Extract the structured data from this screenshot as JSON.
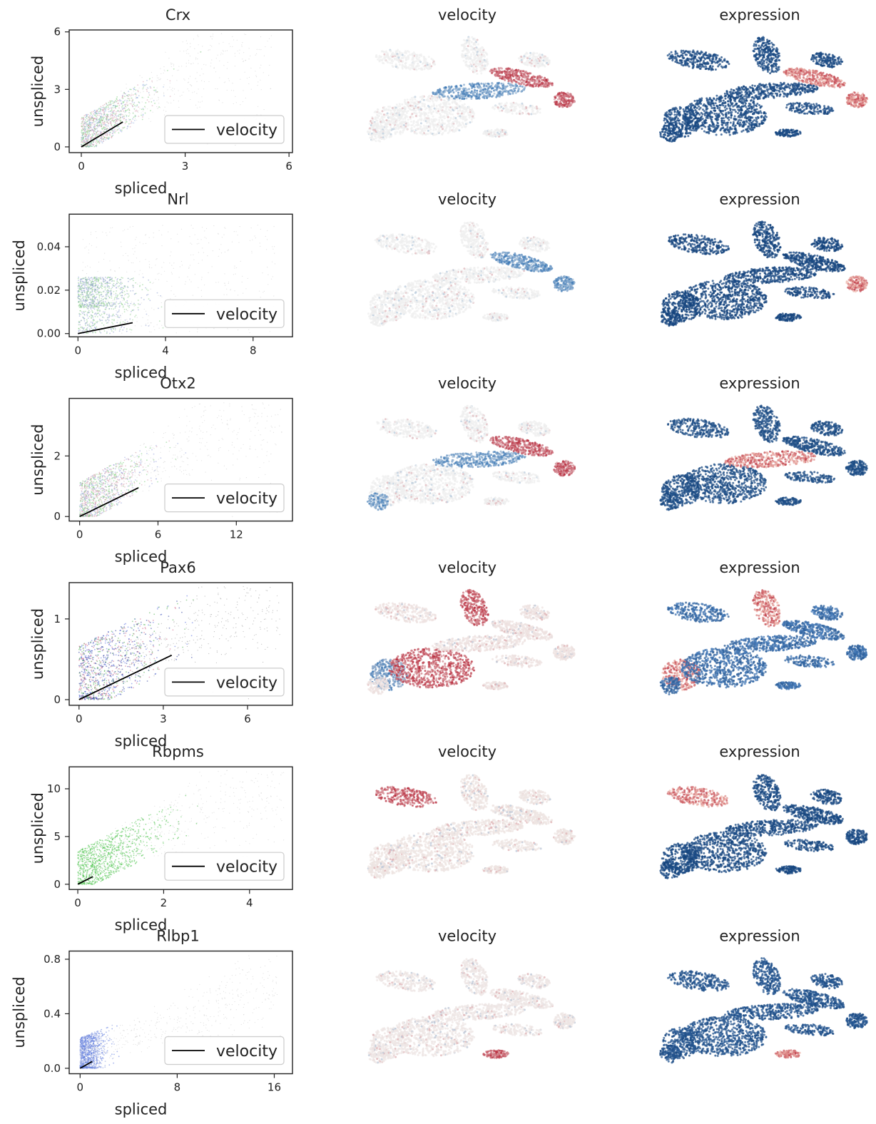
{
  "figure": {
    "velocity_title": "velocity",
    "expression_title": "expression"
  },
  "chart_data": [
    {
      "type": "scatter",
      "title": "Crx",
      "xlabel": "spliced",
      "ylabel": "unspliced",
      "xlim": [
        -0.35,
        6.1
      ],
      "ylim": [
        -0.3,
        6.1
      ],
      "xticks": [
        0,
        3,
        6
      ],
      "xtick_labels": [
        "0",
        "3",
        "6"
      ],
      "yticks": [
        0,
        3,
        6
      ],
      "ytick_labels": [
        "0",
        "3",
        "6"
      ],
      "legend": {
        "label": "velocity",
        "position": "lower right"
      },
      "velocity_line": {
        "x": [
          0,
          1.2
        ],
        "y": [
          0,
          1.3
        ]
      },
      "cloud": {
        "xmax": 5.5,
        "ymax": 5.4,
        "slope": 1.05,
        "dense_xmax": 1.9,
        "dense_ymax": 2.2
      },
      "point_colors": [
        "#7fcf7f",
        "#9ab0df",
        "#d9a0b0",
        "#c8c8c8"
      ]
    },
    {
      "type": "scatter",
      "title": "Nrl",
      "xlabel": "spliced",
      "ylabel": "unspliced",
      "xlim": [
        -0.4,
        9.8
      ],
      "ylim": [
        -0.0015,
        0.055
      ],
      "xticks": [
        0,
        4,
        8
      ],
      "xtick_labels": [
        "0",
        "4",
        "8"
      ],
      "yticks": [
        0,
        0.02,
        0.04
      ],
      "ytick_labels": [
        "0.00",
        "0.02",
        "0.04"
      ],
      "legend": {
        "label": "velocity",
        "position": "lower right"
      },
      "velocity_line": {
        "x": [
          0,
          2.5
        ],
        "y": [
          0,
          0.005
        ]
      },
      "cloud": {
        "xmax": 9.0,
        "ymax": 0.05,
        "slope": 0.0,
        "dense_xmax": 2.8,
        "dense_ymax": 0.027
      },
      "point_colors": [
        "#8fd08f",
        "#8f9fcf",
        "#c8c8c8"
      ]
    },
    {
      "type": "scatter",
      "title": "Otx2",
      "xlabel": "spliced",
      "ylabel": "unspliced",
      "xlim": [
        -0.8,
        16.3
      ],
      "ylim": [
        -0.15,
        3.9
      ],
      "xticks": [
        0,
        6,
        12
      ],
      "xtick_labels": [
        "0",
        "6",
        "12"
      ],
      "yticks": [
        0,
        2
      ],
      "ytick_labels": [
        "0",
        "2"
      ],
      "legend": {
        "label": "velocity",
        "position": "lower right"
      },
      "velocity_line": {
        "x": [
          0,
          4.5
        ],
        "y": [
          0,
          0.95
        ]
      },
      "cloud": {
        "xmax": 15.5,
        "ymax": 3.7,
        "slope": 0.24,
        "dense_xmax": 5.0,
        "dense_ymax": 1.6
      },
      "point_colors": [
        "#7fcf7f",
        "#9aa6df",
        "#d9a0b0",
        "#c8c8c8"
      ]
    },
    {
      "type": "scatter",
      "title": "Pax6",
      "xlabel": "spliced",
      "ylabel": "unspliced",
      "xlim": [
        -0.35,
        7.6
      ],
      "ylim": [
        -0.07,
        1.45
      ],
      "xticks": [
        0,
        3,
        6
      ],
      "xtick_labels": [
        "0",
        "3",
        "6"
      ],
      "yticks": [
        0,
        1
      ],
      "ytick_labels": [
        "0",
        "1"
      ],
      "legend": {
        "label": "velocity",
        "position": "lower right"
      },
      "velocity_line": {
        "x": [
          0,
          3.3
        ],
        "y": [
          0,
          0.55
        ]
      },
      "cloud": {
        "xmax": 7.2,
        "ymax": 1.35,
        "slope": 0.17,
        "dense_xmax": 3.2,
        "dense_ymax": 0.95
      },
      "point_colors": [
        "#5a6fe0",
        "#2f3f9f",
        "#d06a8a",
        "#56b356",
        "#888888"
      ]
    },
    {
      "type": "scatter",
      "title": "Rbpms",
      "xlabel": "spliced",
      "ylabel": "unspliced",
      "xlim": [
        -0.2,
        5.0
      ],
      "ylim": [
        -0.55,
        12.3
      ],
      "xticks": [
        0,
        2,
        4
      ],
      "xtick_labels": [
        "0",
        "2",
        "4"
      ],
      "yticks": [
        0,
        5,
        10
      ],
      "ytick_labels": [
        "0",
        "5",
        "10"
      ],
      "legend": {
        "label": "velocity",
        "position": "lower right"
      },
      "velocity_line": {
        "x": [
          0,
          0.35
        ],
        "y": [
          0,
          0.8
        ]
      },
      "cloud": {
        "xmax": 4.8,
        "ymax": 11.5,
        "slope": 2.35,
        "dense_xmax": 2.0,
        "dense_ymax": 5.0
      },
      "point_colors": [
        "#3fbf3f",
        "#6fcf6f",
        "#c8c8c8"
      ]
    },
    {
      "type": "scatter",
      "title": "Rlbp1",
      "xlabel": "spliced",
      "ylabel": "unspliced",
      "xlim": [
        -0.9,
        17.5
      ],
      "ylim": [
        -0.04,
        0.86
      ],
      "xticks": [
        0,
        8,
        16
      ],
      "xtick_labels": [
        "0",
        "8",
        "16"
      ],
      "yticks": [
        0,
        0.4,
        0.8
      ],
      "ytick_labels": [
        "0.0",
        "0.4",
        "0.8"
      ],
      "legend": {
        "label": "velocity",
        "position": "lower right"
      },
      "velocity_line": {
        "x": [
          0,
          1.0
        ],
        "y": [
          0,
          0.05
        ]
      },
      "cloud": {
        "xmax": 16.5,
        "ymax": 0.6,
        "slope": 0.035,
        "dense_xmax": 2.2,
        "dense_ymax": 0.32
      },
      "point_colors": [
        "#5a78e0",
        "#8fa0df",
        "#c8c8c8"
      ]
    }
  ],
  "embeddings": {
    "velocity": [
      {
        "gene": "Crx",
        "scale": "diverging",
        "hot": [
          "branch_right",
          "tip_right"
        ],
        "cool": [
          "mid_band"
        ],
        "base": "#efefef"
      },
      {
        "gene": "Nrl",
        "scale": "diverging",
        "hot": [],
        "cool": [
          "tip_right",
          "branch_right"
        ],
        "base": "#efefef"
      },
      {
        "gene": "Otx2",
        "scale": "diverging",
        "hot": [
          "branch_right",
          "tip_right"
        ],
        "cool": [
          "mid_band",
          "lower_left"
        ],
        "base": "#efefef"
      },
      {
        "gene": "Pax6",
        "scale": "diverging",
        "hot": [
          "body",
          "upper_stem"
        ],
        "cool": [
          "left_lobe"
        ],
        "base": "#ede2e0"
      },
      {
        "gene": "Rbpms",
        "scale": "diverging",
        "hot": [
          "upper_left_arm"
        ],
        "cool": [],
        "base": "#eee4e2"
      },
      {
        "gene": "Rlbp1",
        "scale": "diverging",
        "hot": [
          "bottom_spot"
        ],
        "cool": [],
        "base": "#eee6e4"
      }
    ],
    "expression": [
      {
        "gene": "Crx",
        "scale": "diverging",
        "hot": [
          "branch_right",
          "tip_right"
        ],
        "base": "#1e4f8a"
      },
      {
        "gene": "Nrl",
        "scale": "diverging",
        "hot": [
          "tip_right"
        ],
        "base": "#1a4a85"
      },
      {
        "gene": "Otx2",
        "scale": "diverging",
        "hot": [
          "mid_band"
        ],
        "base": "#25568f"
      },
      {
        "gene": "Pax6",
        "scale": "diverging",
        "hot": [
          "upper_stem",
          "left_lobe"
        ],
        "base": "#4a80bf"
      },
      {
        "gene": "Rbpms",
        "scale": "diverging",
        "hot": [
          "upper_left_arm"
        ],
        "base": "#1e4f8a"
      },
      {
        "gene": "Rlbp1",
        "scale": "diverging",
        "hot": [
          "bottom_spot"
        ],
        "base": "#2a5c98"
      }
    ],
    "colors": {
      "red": "#b2182b",
      "blue": "#2166ac",
      "deep_blue": "#0d3a70",
      "light": "#f0f0f0"
    }
  }
}
